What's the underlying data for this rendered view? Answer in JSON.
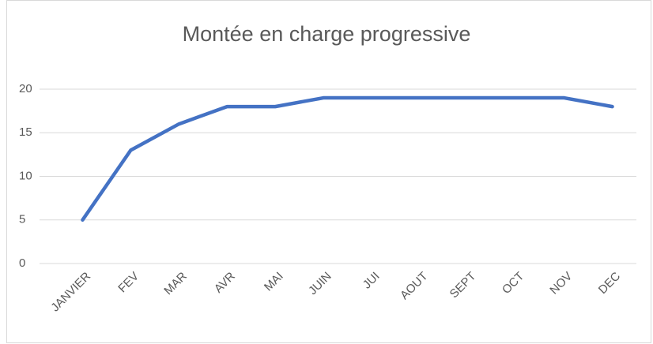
{
  "chart_data": {
    "type": "line",
    "title": "Montée en charge progressive",
    "categories": [
      "JANVIER",
      "FEV",
      "MAR",
      "AVR",
      "MAI",
      "JUIN",
      "JUI",
      "AOUT",
      "SEPT",
      "OCT",
      "NOV",
      "DEC"
    ],
    "values": [
      5,
      13,
      16,
      18,
      18,
      19,
      19,
      19,
      19,
      19,
      19,
      18
    ],
    "color": "#4472c4",
    "ylim": [
      0,
      20
    ],
    "yticks": [
      0,
      5,
      10,
      15,
      20
    ],
    "grid": true
  }
}
